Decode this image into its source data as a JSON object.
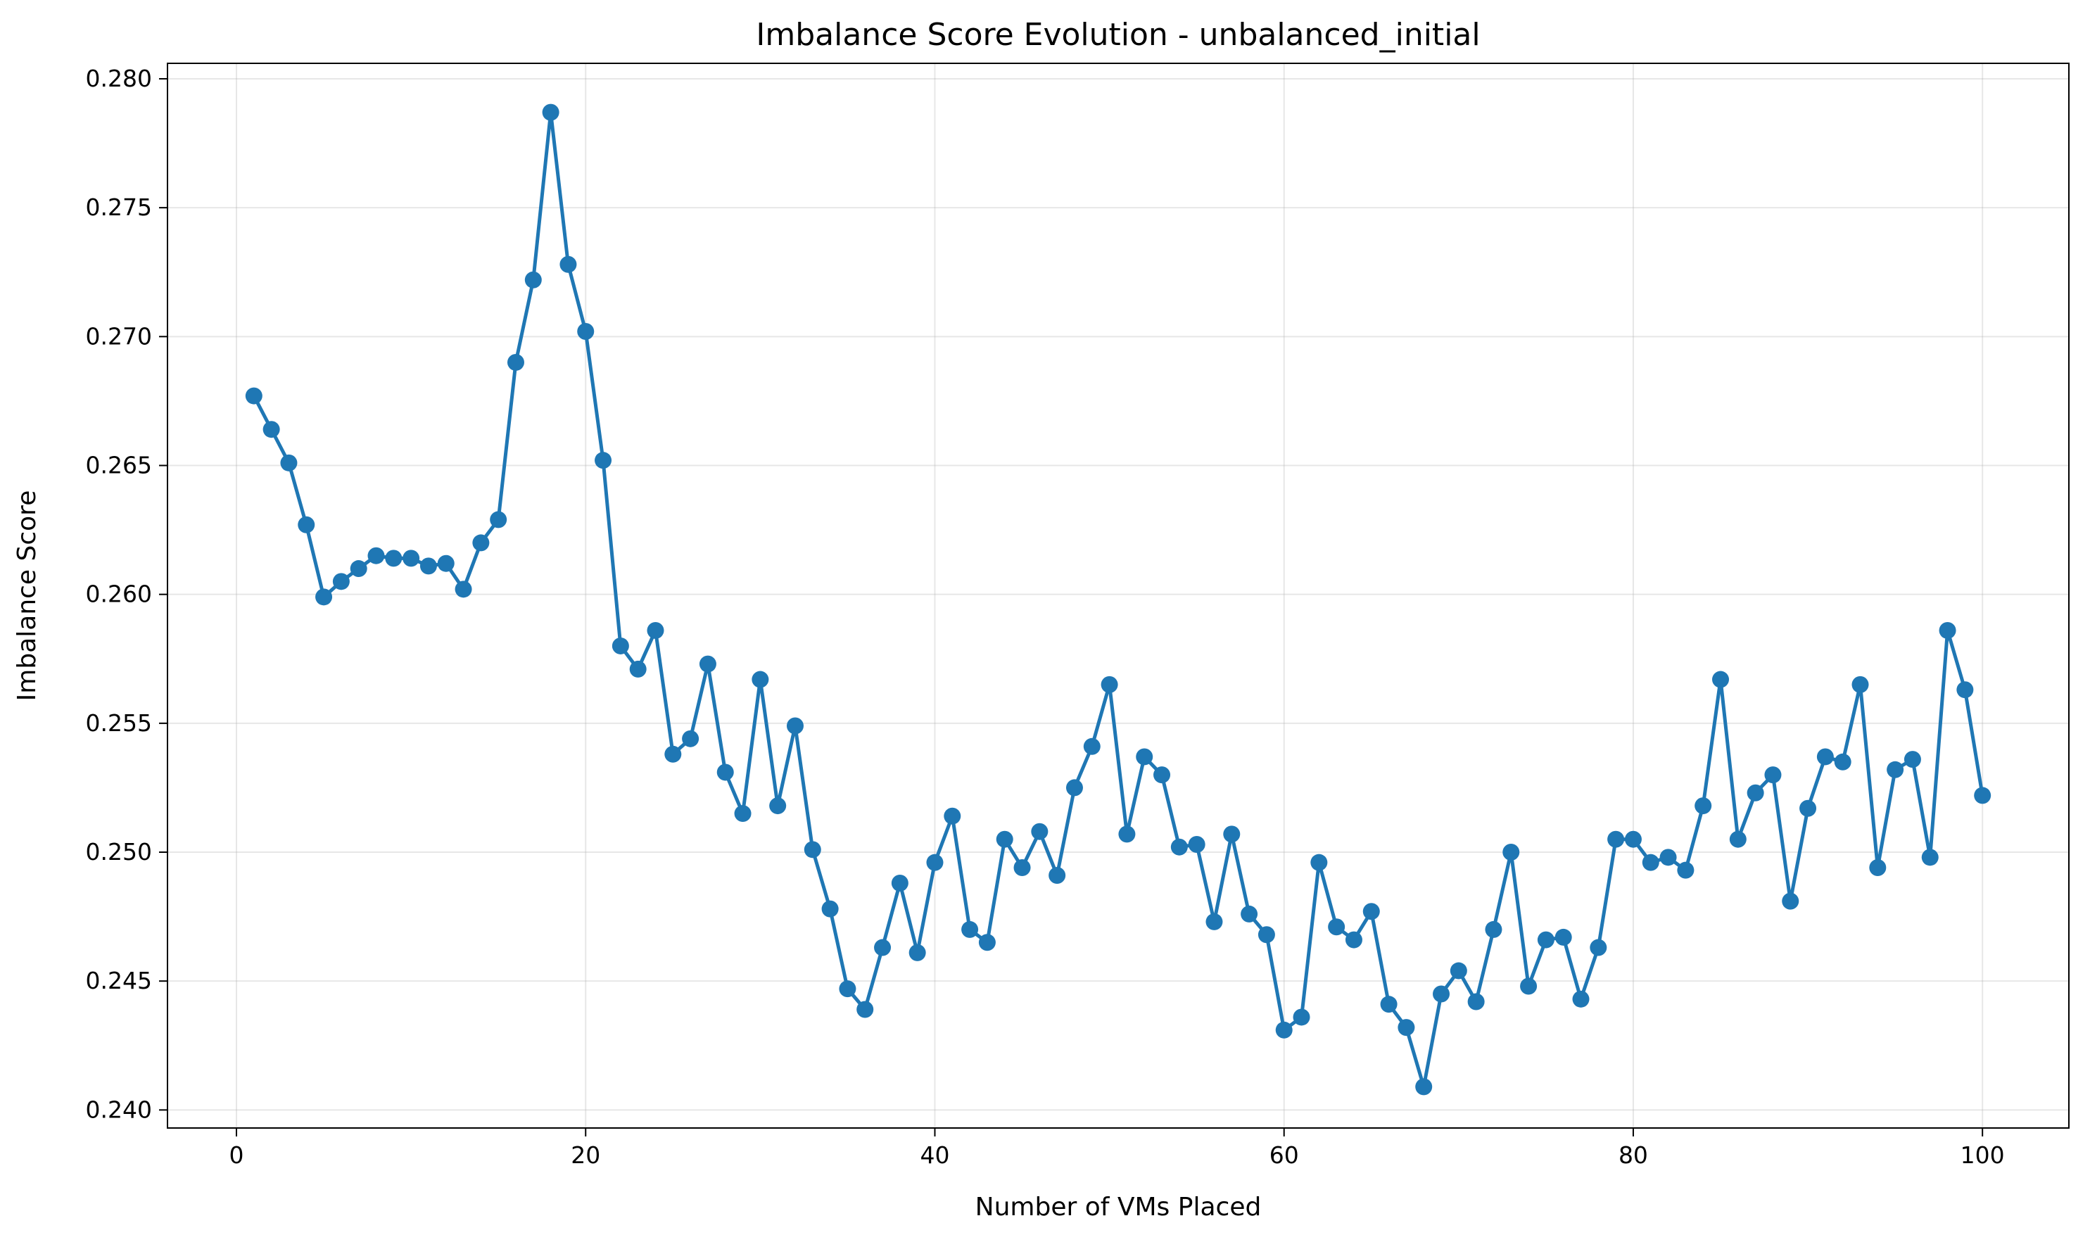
{
  "chart_data": {
    "type": "line",
    "title": "Imbalance Score Evolution - unbalanced_initial",
    "xlabel": "Number of VMs Placed",
    "ylabel": "Imbalance Score",
    "xlim": [
      -3.95,
      104.95
    ],
    "ylim": [
      0.2393,
      0.2806
    ],
    "x_ticks": [
      0,
      20,
      40,
      60,
      80,
      100
    ],
    "x_tick_labels": [
      "0",
      "20",
      "40",
      "60",
      "80",
      "100"
    ],
    "y_ticks": [
      0.24,
      0.245,
      0.25,
      0.255,
      0.26,
      0.265,
      0.27,
      0.275,
      0.28
    ],
    "y_tick_labels": [
      "0.240",
      "0.245",
      "0.250",
      "0.255",
      "0.260",
      "0.265",
      "0.270",
      "0.275",
      "0.280"
    ],
    "grid": true,
    "legend": "none",
    "colors": {
      "series": "#1f77b4"
    },
    "series": [
      {
        "marker": "circle",
        "x": [
          1,
          2,
          3,
          4,
          5,
          6,
          7,
          8,
          9,
          10,
          11,
          12,
          13,
          14,
          15,
          16,
          17,
          18,
          19,
          20,
          21,
          22,
          23,
          24,
          25,
          26,
          27,
          28,
          29,
          30,
          31,
          32,
          33,
          34,
          35,
          36,
          37,
          38,
          39,
          40,
          41,
          42,
          43,
          44,
          45,
          46,
          47,
          48,
          49,
          50,
          51,
          52,
          53,
          54,
          55,
          56,
          57,
          58,
          59,
          60,
          61,
          62,
          63,
          64,
          65,
          66,
          67,
          68,
          69,
          70,
          71,
          72,
          73,
          74,
          75,
          76,
          77,
          78,
          79,
          80,
          81,
          82,
          83,
          84,
          85,
          86,
          87,
          88,
          89,
          90,
          91,
          92,
          93,
          94,
          95,
          96,
          97,
          98,
          99,
          100
        ],
        "values": [
          0.2677,
          0.2664,
          0.2651,
          0.2627,
          0.2599,
          0.2605,
          0.261,
          0.2615,
          0.2614,
          0.2614,
          0.2611,
          0.2612,
          0.2602,
          0.262,
          0.2629,
          0.269,
          0.2722,
          0.2787,
          0.2728,
          0.2702,
          0.2652,
          0.258,
          0.2571,
          0.2586,
          0.2538,
          0.2544,
          0.2573,
          0.2531,
          0.2515,
          0.2567,
          0.2518,
          0.2549,
          0.2501,
          0.2478,
          0.2447,
          0.2439,
          0.2463,
          0.2488,
          0.2461,
          0.2496,
          0.2514,
          0.247,
          0.2465,
          0.2505,
          0.2494,
          0.2508,
          0.2491,
          0.2525,
          0.2541,
          0.2565,
          0.2507,
          0.2537,
          0.253,
          0.2502,
          0.2503,
          0.2473,
          0.2507,
          0.2476,
          0.2468,
          0.2431,
          0.2436,
          0.2496,
          0.2471,
          0.2466,
          0.2477,
          0.2441,
          0.2432,
          0.2409,
          0.2445,
          0.2454,
          0.2442,
          0.247,
          0.25,
          0.2448,
          0.2466,
          0.2467,
          0.2443,
          0.2463,
          0.2505,
          0.2505,
          0.2496,
          0.2498,
          0.2493,
          0.2518,
          0.2567,
          0.2505,
          0.2523,
          0.253,
          0.2481,
          0.2517,
          0.2537,
          0.2535,
          0.2565,
          0.2494,
          0.2532,
          0.2536,
          0.2498,
          0.2586,
          0.2563,
          0.2522
        ]
      }
    ]
  }
}
